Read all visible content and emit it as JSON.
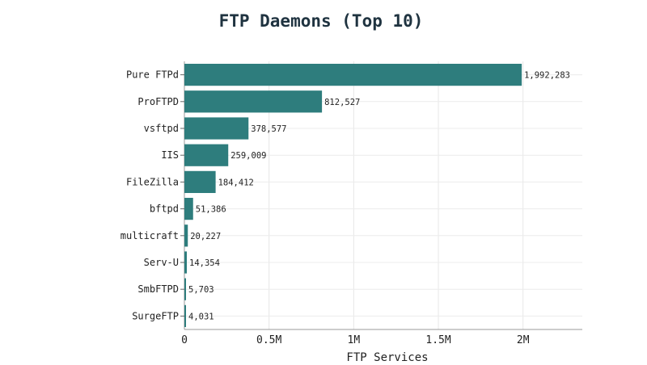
{
  "chart_data": {
    "type": "bar",
    "orientation": "horizontal",
    "title": "FTP Daemons (Top 10)",
    "xlabel": "FTP Services",
    "ylabel": "",
    "categories": [
      "Pure FTPd",
      "ProFTPD",
      "vsftpd",
      "IIS",
      "FileZilla",
      "bftpd",
      "multicraft",
      "Serv-U",
      "SmbFTPD",
      "SurgeFTP"
    ],
    "values": [
      1992283,
      812527,
      378577,
      259009,
      184412,
      51386,
      20227,
      14354,
      5703,
      4031
    ],
    "value_labels": [
      "1,992,283",
      "812,527",
      "378,577",
      "259,009",
      "184,412",
      "51,386",
      "20,227",
      "14,354",
      "5,703",
      "4,031"
    ],
    "xlim": [
      0,
      2350000
    ],
    "xticks": [
      0,
      500000,
      1000000,
      1500000,
      2000000
    ],
    "xtick_labels": [
      "0",
      "0.5M",
      "1M",
      "1.5M",
      "2M"
    ],
    "grid": true,
    "bar_color": "#2e7d7d"
  }
}
